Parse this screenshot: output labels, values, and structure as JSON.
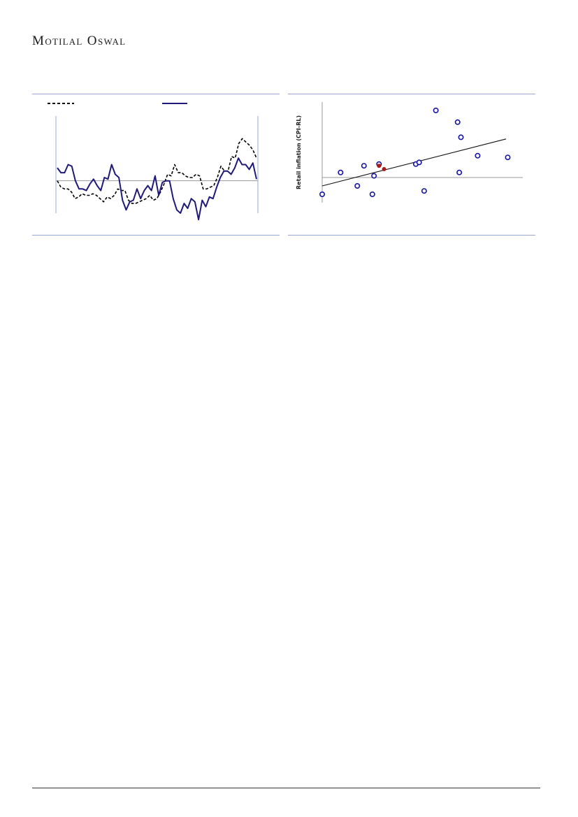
{
  "header": {
    "brand_first_1": "M",
    "brand_rest_1": "OTILAL",
    "brand_first_2": "O",
    "brand_rest_2": "SWAL"
  },
  "colors": {
    "series_dashed": "#000000",
    "series_solid": "#1f1a7a",
    "scatter_open": "#1414a8",
    "scatter_highlight": "#aa1a1a",
    "frame": "#9aa4d0"
  },
  "chart_data": [
    {
      "type": "line",
      "title": "",
      "xlabel": "",
      "ylabel": "",
      "ylim": [
        -2,
        4
      ],
      "zero_line": 0,
      "legend": "top",
      "series": [
        {
          "style": "dashed",
          "values": [
            0.0,
            -0.4,
            -0.5,
            -0.5,
            -0.7,
            -1.1,
            -1.0,
            -0.8,
            -0.9,
            -0.9,
            -0.8,
            -0.9,
            -1.1,
            -1.3,
            -1.0,
            -1.1,
            -0.9,
            -0.5,
            -0.6,
            -0.6,
            -1.2,
            -1.4,
            -1.4,
            -1.3,
            -1.2,
            -1.1,
            -0.9,
            -1.2,
            -1.1,
            -0.7,
            -0.2,
            0.4,
            0.3,
            1.0,
            0.5,
            0.5,
            0.3,
            0.2,
            0.2,
            0.4,
            0.3,
            -0.5,
            -0.5,
            -0.4,
            -0.3,
            0.2,
            0.9,
            0.6,
            0.6,
            1.5,
            1.4,
            2.3,
            2.6,
            2.4,
            2.2,
            1.9,
            1.4
          ]
        },
        {
          "style": "solid",
          "values": [
            0.8,
            0.5,
            0.5,
            1.0,
            0.9,
            0.0,
            -0.5,
            -0.5,
            -0.6,
            -0.2,
            0.1,
            -0.3,
            -0.6,
            0.2,
            0.1,
            1.0,
            0.4,
            0.2,
            -1.2,
            -1.8,
            -1.3,
            -1.2,
            -0.5,
            -1.1,
            -0.6,
            -0.3,
            -0.6,
            0.3,
            -0.9,
            -0.1,
            0.0,
            0.0,
            -1.1,
            -1.8,
            -2.0,
            -1.4,
            -1.7,
            -1.1,
            -1.3,
            -2.4,
            -1.2,
            -1.6,
            -1.0,
            -1.1,
            -0.4,
            0.2,
            0.6,
            0.6,
            0.4,
            0.8,
            1.4,
            1.0,
            1.0,
            0.7,
            1.1,
            0.1
          ]
        }
      ]
    },
    {
      "type": "scatter",
      "title": "",
      "xlabel": "",
      "ylabel": "Retail inflation (CPI-RL)",
      "xlim": [
        0,
        12
      ],
      "ylim": [
        -1.5,
        4.5
      ],
      "zero_line": 0,
      "trendline": {
        "x": [
          0,
          11
        ],
        "y": [
          -0.5,
          2.3
        ]
      },
      "series": [
        {
          "style": "open",
          "points": [
            [
              0.0,
              -1.0
            ],
            [
              1.1,
              0.3
            ],
            [
              2.1,
              -0.5
            ],
            [
              2.5,
              0.7
            ],
            [
              3.0,
              -1.0
            ],
            [
              3.1,
              0.1
            ],
            [
              3.4,
              0.8
            ],
            [
              5.6,
              0.8
            ],
            [
              5.8,
              0.9
            ],
            [
              6.1,
              -0.8
            ],
            [
              6.8,
              4.0
            ],
            [
              8.1,
              3.3
            ],
            [
              8.2,
              0.3
            ],
            [
              8.3,
              2.4
            ],
            [
              9.3,
              1.3
            ],
            [
              11.1,
              1.2
            ]
          ]
        },
        {
          "style": "filled",
          "points": [
            [
              3.4,
              0.7
            ],
            [
              3.7,
              0.5
            ]
          ]
        }
      ]
    }
  ]
}
